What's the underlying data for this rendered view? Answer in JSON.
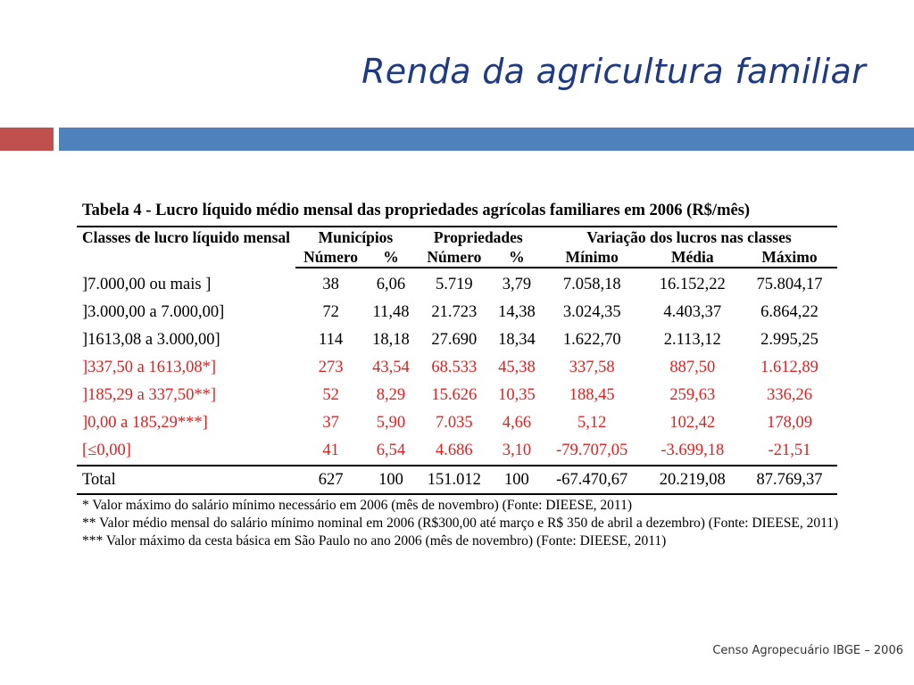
{
  "slide": {
    "title": "Renda da agricultura familiar",
    "footer": "Censo Agropecuário IBGE – 2006",
    "colors": {
      "title": "#1f3a80",
      "accent_red": "#c0504d",
      "accent_blue": "#4f81bd",
      "row_red": "#e02020"
    }
  },
  "table": {
    "caption": "Tabela 4 - Lucro líquido médio mensal das propriedades agrícolas familiares em 2006 (R$/mês)",
    "header_groups": {
      "classes": "Classes de lucro líquido mensal",
      "municipios": "Municípios",
      "propriedades": "Propriedades",
      "variacao": "Variação dos lucros nas classes"
    },
    "subheaders": {
      "mun_numero": "Número",
      "mun_pct": "%",
      "prop_numero": "Número",
      "prop_pct": "%",
      "minimo": "Mínimo",
      "media": "Média",
      "maximo": "Máximo"
    },
    "rows": [
      {
        "classe": "]7.000,00 ou mais ]",
        "mun_num": "38",
        "mun_pct": "6,06",
        "prop_num": "5.719",
        "prop_pct": "3,79",
        "min": "7.058,18",
        "media": "16.152,22",
        "max": "75.804,17"
      },
      {
        "classe": "]3.000,00 a 7.000,00]",
        "mun_num": "72",
        "mun_pct": "11,48",
        "prop_num": "21.723",
        "prop_pct": "14,38",
        "min": "3.024,35",
        "media": "4.403,37",
        "max": "6.864,22"
      },
      {
        "classe": "]1613,08 a 3.000,00]",
        "mun_num": "114",
        "mun_pct": "18,18",
        "prop_num": "27.690",
        "prop_pct": "18,34",
        "min": "1.622,70",
        "media": "2.113,12",
        "max": "2.995,25"
      },
      {
        "classe": "]337,50 a 1613,08*]",
        "mun_num": "273",
        "mun_pct": "43,54",
        "prop_num": "68.533",
        "prop_pct": "45,38",
        "min": "337,58",
        "media": "887,50",
        "max": "1.612,89"
      },
      {
        "classe": "]185,29 a 337,50**]",
        "mun_num": "52",
        "mun_pct": "8,29",
        "prop_num": "15.626",
        "prop_pct": "10,35",
        "min": "188,45",
        "media": "259,63",
        "max": "336,26"
      },
      {
        "classe": "]0,00 a 185,29***]",
        "mun_num": "37",
        "mun_pct": "5,90",
        "prop_num": "7.035",
        "prop_pct": "4,66",
        "min": "5,12",
        "media": "102,42",
        "max": "178,09"
      },
      {
        "classe": "[≤0,00]",
        "mun_num": "41",
        "mun_pct": "6,54",
        "prop_num": "4.686",
        "prop_pct": "3,10",
        "min": "-79.707,05",
        "media": "-3.699,18",
        "max": "-21,51"
      }
    ],
    "total": {
      "classe": "Total",
      "mun_num": "627",
      "mun_pct": "100",
      "prop_num": "151.012",
      "prop_pct": "100",
      "min": "-67.470,67",
      "media": "20.219,08",
      "max": "87.769,37"
    },
    "notes": [
      "* Valor máximo do salário mínimo necessário em 2006 (mês de novembro) (Fonte: DIEESE, 2011)",
      "** Valor médio mensal do salário mínimo nominal em 2006 (R$300,00 até março e R$ 350 de abril a dezembro) (Fonte: DIEESE, 2011)",
      "*** Valor máximo da cesta básica em São Paulo no ano 2006 (mês de novembro) (Fonte: DIEESE, 2011)"
    ]
  }
}
